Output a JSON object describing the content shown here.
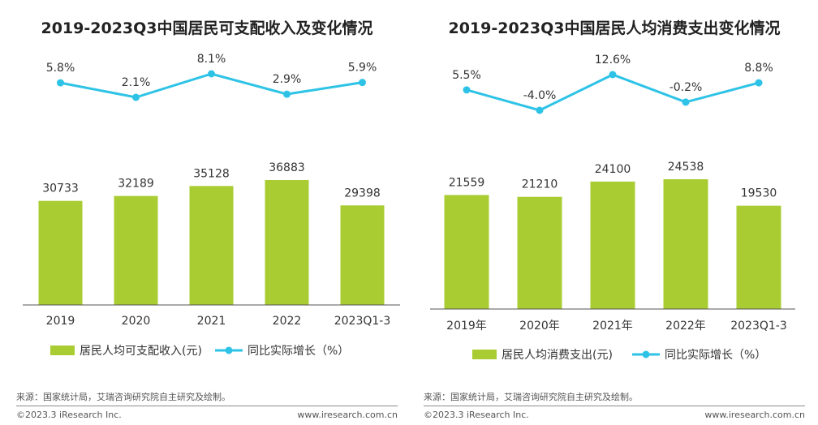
{
  "chart_data": [
    {
      "type": "bar",
      "title": "2019-2023Q3中国居民可支配收入及变化情况",
      "categories": [
        "2019",
        "2020",
        "2021",
        "2022",
        "2023Q1-3"
      ],
      "series": [
        {
          "name": "居民人均可支配收入(元)",
          "type": "bar",
          "values": [
            30733,
            32189,
            35128,
            36883,
            29398
          ],
          "labels": [
            "30733",
            "32189",
            "35128",
            "36883",
            "29398"
          ]
        },
        {
          "name": "同比实际增长（%）",
          "type": "line",
          "values": [
            5.8,
            2.1,
            8.1,
            2.9,
            5.9
          ],
          "labels": [
            "5.8%",
            "2.1%",
            "8.1%",
            "2.9%",
            "5.9%"
          ]
        }
      ],
      "legend": "bottom",
      "grid": false
    },
    {
      "type": "bar",
      "title": "2019-2023Q3中国居民人均消费支出变化情况",
      "categories": [
        "2019年",
        "2020年",
        "2021年",
        "2022年",
        "2023Q1-3"
      ],
      "series": [
        {
          "name": "居民人均消费支出(元)",
          "type": "bar",
          "values": [
            21559,
            21210,
            24100,
            24538,
            19530
          ],
          "labels": [
            "21559",
            "21210",
            "24100",
            "24538",
            "19530"
          ]
        },
        {
          "name": "同比实际增长（%）",
          "type": "line",
          "values": [
            5.5,
            -4.0,
            12.6,
            -0.2,
            8.8
          ],
          "labels": [
            "5.5%",
            "-4.0%",
            "12.6%",
            "-0.2%",
            "8.8%"
          ]
        }
      ],
      "legend": "bottom",
      "grid": false
    }
  ],
  "colors": {
    "bar": "#a8cc32",
    "line": "#2ec3e6",
    "axis": "#555555",
    "text": "#333333"
  },
  "footer": [
    {
      "source": "来源：国家统计局，艾瑞咨询研究院自主研究及绘制。",
      "copyright": "©2023.3 iResearch Inc.",
      "website": "www.iresearch.com.cn"
    },
    {
      "source": "来源：国家统计局，艾瑞咨询研究院自主研究及绘制。",
      "copyright": "©2023.3 iResearch Inc.",
      "website": "www.iresearch.com.cn"
    }
  ]
}
